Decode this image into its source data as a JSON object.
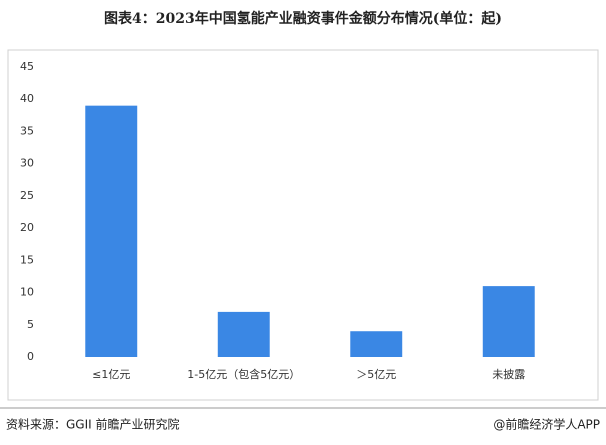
{
  "chart_data": {
    "type": "bar",
    "title": "图表4：2023年中国氢能产业融资事件金额分布情况(单位：起)",
    "categories": [
      "≤1亿元",
      "1-5亿元（包含5亿元）",
      "＞5亿元",
      "未披露"
    ],
    "values": [
      39,
      7,
      4,
      11
    ],
    "color": "#3a87e4",
    "ylim": [
      0,
      45
    ],
    "yticks": [
      0,
      5,
      10,
      15,
      20,
      25,
      30,
      35,
      40,
      45
    ],
    "grid": false,
    "source": "资料来源：GGII 前瞻产业研究院",
    "credit": "@前瞻经济学人APP"
  }
}
